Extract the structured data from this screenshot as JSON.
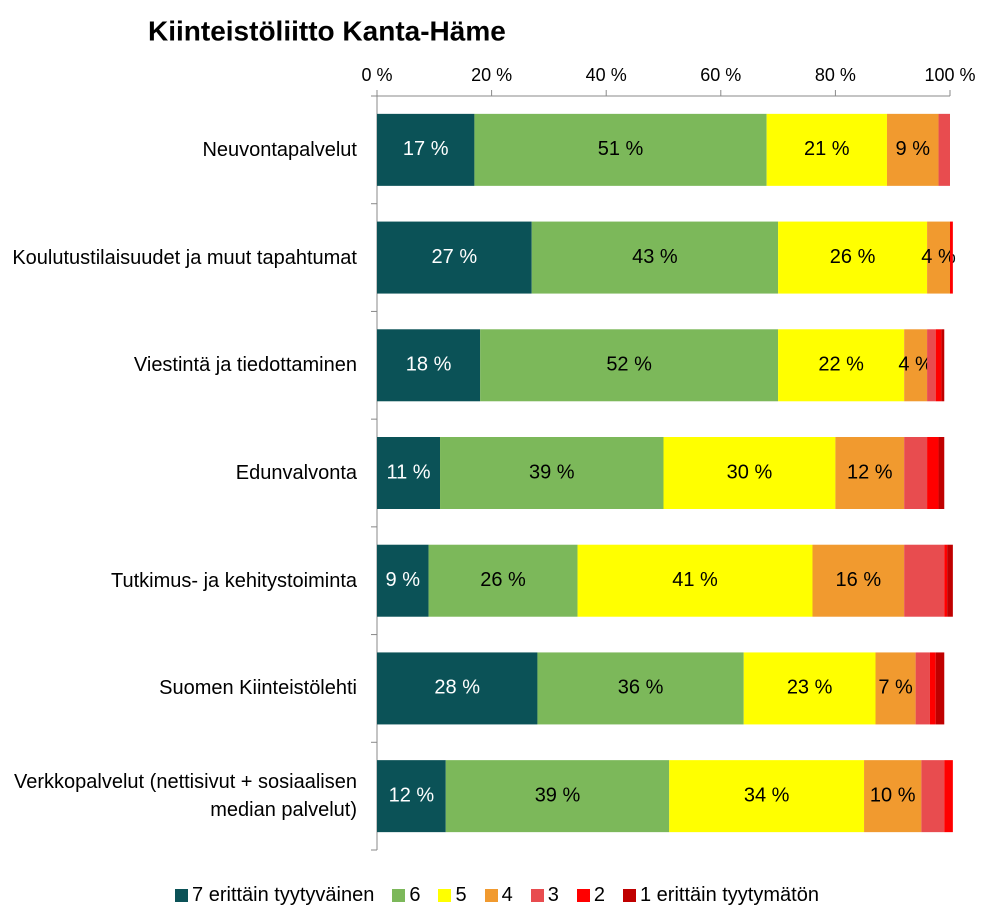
{
  "chart_data": {
    "type": "stacked-bar-horizontal",
    "title": "Kiinteistöliitto Kanta-Häme",
    "categories": [
      "Neuvontapalvelut",
      "Koulutustilaisuudet ja muut tapahtumat",
      "Viestintä ja tiedottaminen",
      "Edunvalvonta",
      "Tutkimus- ja kehitystoiminta",
      "Suomen Kiinteistölehti",
      "Verkkopalvelut (nettisivut + sosiaalisen median palvelut)"
    ],
    "series": [
      {
        "name": "7 erittäin tyytyväinen",
        "color": "#0b5257",
        "values": [
          17,
          27,
          18,
          11,
          9,
          28,
          12
        ],
        "value_labels": [
          "17 %",
          "27 %",
          "18 %",
          "11 %",
          "9 %",
          "28 %",
          "12 %"
        ]
      },
      {
        "name": "6",
        "color": "#7cb85a",
        "values": [
          51,
          43,
          52,
          39,
          26,
          36,
          39
        ],
        "value_labels": [
          "51 %",
          "43 %",
          "52 %",
          "39 %",
          "26 %",
          "36 %",
          "39 %"
        ]
      },
      {
        "name": "5",
        "color": "#ffff00",
        "values": [
          21,
          26,
          22,
          30,
          41,
          23,
          34
        ],
        "value_labels": [
          "21 %",
          "26 %",
          "22 %",
          "30 %",
          "41 %",
          "23 %",
          "34 %"
        ]
      },
      {
        "name": "4",
        "color": "#f19a2f",
        "values": [
          9,
          4,
          4,
          12,
          16,
          7,
          10
        ],
        "value_labels": [
          "9 %",
          "4 %",
          "4 %",
          "12 %",
          "16 %",
          "7 %",
          "10 %"
        ]
      },
      {
        "name": "3",
        "color": "#e84c4f",
        "values": [
          2,
          0,
          1.5,
          4,
          7,
          2.5,
          4
        ]
      },
      {
        "name": "2",
        "color": "#ff0000",
        "values": [
          0,
          0.5,
          1,
          2,
          0.5,
          1,
          1.5
        ]
      },
      {
        "name": "1 erittäin tyytymätön",
        "color": "#c00000",
        "values": [
          0,
          0,
          0.5,
          1,
          1,
          1.5,
          0
        ]
      }
    ],
    "xlim": [
      0,
      100
    ],
    "xticks": [
      {
        "value": 0,
        "label": "0 %"
      },
      {
        "value": 20,
        "label": "20 %"
      },
      {
        "value": 40,
        "label": "40 %"
      },
      {
        "value": 60,
        "label": "60 %"
      },
      {
        "value": 80,
        "label": "80 %"
      },
      {
        "value": 100,
        "label": "100 %"
      }
    ],
    "legend": "bottom"
  }
}
